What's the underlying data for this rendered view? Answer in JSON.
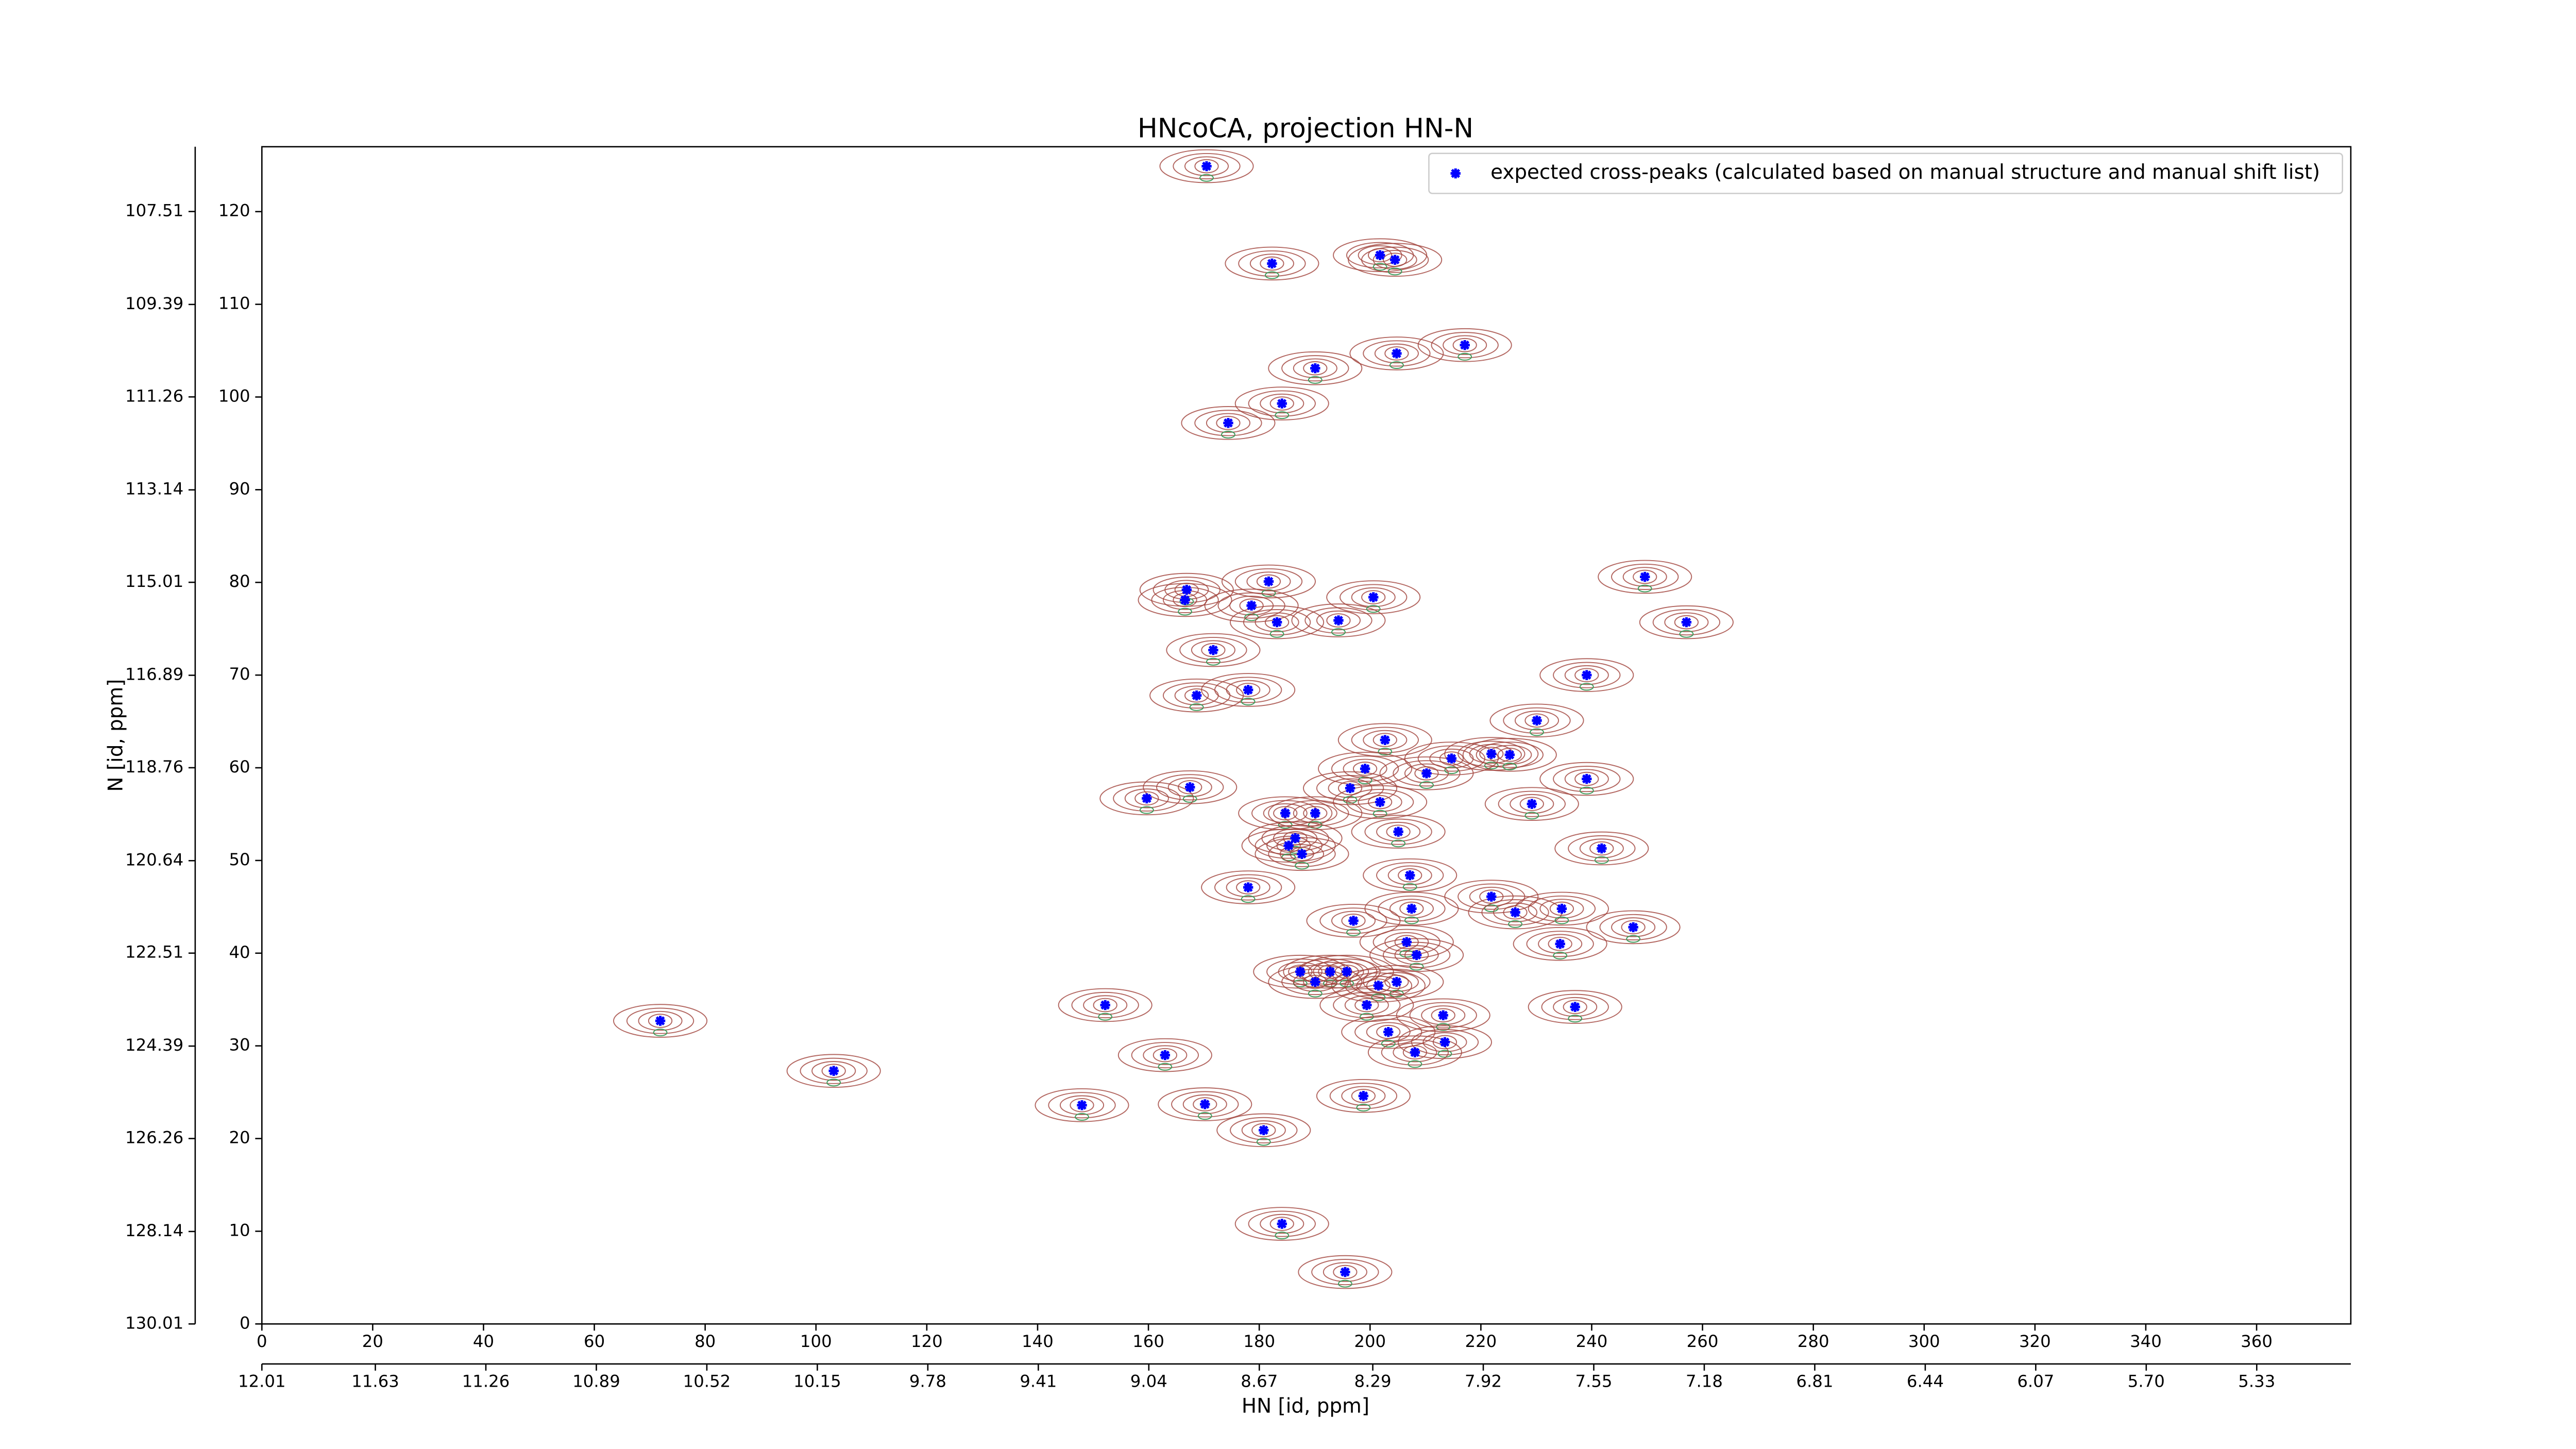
{
  "chart_data": {
    "type": "scatter",
    "title": "HNcoCA, projection HN-N",
    "xlabel": "HN [id, ppm]",
    "ylabel": "N [id, ppm]",
    "xlim": [
      0,
      377
    ],
    "ylim": [
      0,
      127
    ],
    "xticks": [
      0,
      20,
      40,
      60,
      80,
      100,
      120,
      140,
      160,
      180,
      200,
      220,
      240,
      260,
      280,
      300,
      320,
      340,
      360
    ],
    "yticks": [
      0,
      10,
      20,
      30,
      40,
      50,
      60,
      70,
      80,
      90,
      100,
      110,
      120
    ],
    "x2lim": [
      12.01,
      5.015
    ],
    "x2ticks": [
      12.01,
      11.63,
      11.26,
      10.89,
      10.52,
      10.15,
      9.78,
      9.41,
      9.04,
      8.67,
      8.29,
      7.92,
      7.55,
      7.18,
      6.81,
      6.44,
      6.07,
      {
        "value": 5.7,
        "label": "5.70"
      },
      5.33
    ],
    "y2lim": [
      130.01,
      106.2
    ],
    "y2ticks": [
      130.01,
      128.14,
      126.26,
      124.39,
      122.51,
      120.64,
      118.76,
      116.89,
      115.01,
      113.14,
      111.26,
      109.39,
      107.51
    ],
    "legend": "upper right",
    "contour_color": "#a0413a",
    "series": [
      {
        "name": "expected cross-peaks (calculated based on manual structure and manual shift list)",
        "color": "#0000ff",
        "x": [
          170.5,
          182.3,
          201.8,
          204.5,
          204.8,
          217.1,
          190.1,
          184.1,
          174.4,
          181.7,
          166.9,
          166.6,
          178.6,
          183.2,
          194.3,
          200.6,
          249.6,
          257.1,
          171.7,
          168.7,
          178.0,
          239.1,
          230.1,
          202.7,
          221.9,
          214.7,
          225.2,
          199.1,
          210.2,
          239.1,
          167.5,
          159.7,
          196.4,
          201.8,
          229.2,
          184.7,
          190.1,
          205.1,
          186.5,
          185.3,
          187.7,
          241.8,
          207.2,
          178.0,
          221.9,
          207.5,
          226.2,
          234.6,
          197.0,
          247.5,
          234.3,
          206.6,
          208.4,
          187.4,
          192.8,
          195.8,
          190.1,
          204.8,
          201.5,
          199.4,
          237.0,
          152.2,
          71.9,
          213.2,
          203.3,
          213.5,
          208.1,
          163.0,
          103.2,
          198.8,
          148.0,
          170.2,
          180.8,
          184.1,
          195.5
        ],
        "values": [
          124.9,
          114.4,
          115.3,
          114.8,
          104.7,
          105.6,
          103.1,
          99.3,
          97.2,
          80.1,
          79.2,
          78.1,
          77.5,
          75.7,
          75.9,
          78.4,
          80.6,
          75.7,
          72.7,
          67.8,
          68.4,
          70.0,
          65.1,
          63.0,
          61.5,
          61.0,
          61.4,
          59.9,
          59.4,
          58.8,
          57.9,
          56.7,
          57.8,
          56.3,
          56.1,
          55.1,
          55.1,
          53.1,
          52.4,
          51.6,
          50.7,
          51.3,
          48.4,
          47.1,
          46.1,
          44.8,
          44.4,
          44.8,
          43.5,
          42.8,
          41.0,
          41.2,
          39.8,
          38.0,
          38.0,
          38.0,
          36.9,
          36.9,
          36.5,
          34.4,
          34.2,
          34.4,
          32.7,
          33.3,
          31.5,
          30.4,
          29.3,
          29.0,
          27.3,
          24.6,
          23.6,
          23.7,
          20.9,
          10.8,
          5.6
        ]
      }
    ]
  }
}
